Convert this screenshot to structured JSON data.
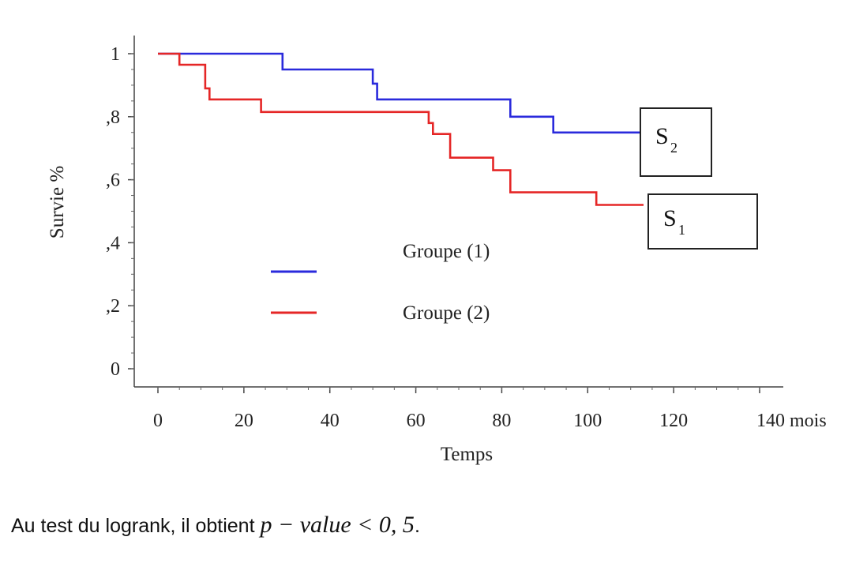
{
  "chart_data": {
    "type": "line",
    "title": "",
    "xlabel": "Temps",
    "ylabel": "Survie %",
    "xlim": [
      0,
      140
    ],
    "ylim": [
      0,
      1
    ],
    "x_ticks": [
      0,
      20,
      40,
      60,
      80,
      100,
      120,
      140
    ],
    "x_tick_labels": [
      "0",
      "20",
      "40",
      "60",
      "80",
      "100",
      "120",
      "140 mois"
    ],
    "y_ticks": [
      0,
      0.2,
      0.4,
      0.6,
      0.8,
      1
    ],
    "y_tick_labels": [
      "0",
      ",2",
      ",4",
      ",6",
      ",8",
      "1"
    ],
    "step": true,
    "series": [
      {
        "name": "Groupe (1)",
        "color": "#2a2adc",
        "x": [
          0,
          29,
          29,
          50,
          50,
          51,
          51,
          82,
          82,
          92,
          92,
          113
        ],
        "y": [
          1,
          1,
          0.95,
          0.95,
          0.905,
          0.905,
          0.855,
          0.855,
          0.8,
          0.8,
          0.75,
          0.75
        ]
      },
      {
        "name": "Groupe (2)",
        "color": "#e52626",
        "x": [
          0,
          5,
          5,
          11,
          11,
          12,
          12,
          24,
          24,
          63,
          63,
          64,
          64,
          68,
          68,
          78,
          78,
          82,
          82,
          102,
          102,
          113
        ],
        "y": [
          1,
          1,
          0.965,
          0.965,
          0.89,
          0.89,
          0.855,
          0.855,
          0.815,
          0.815,
          0.78,
          0.78,
          0.745,
          0.745,
          0.67,
          0.67,
          0.63,
          0.63,
          0.56,
          0.56,
          0.52,
          0.52
        ]
      }
    ],
    "legend": {
      "placement": "center",
      "entries": [
        "Groupe (1)",
        "Groupe (2)"
      ]
    },
    "annotations": [
      {
        "label": "S",
        "subscript": "2",
        "series": "Groupe (1)"
      },
      {
        "label": "S",
        "subscript": "1",
        "series": "Groupe (2)"
      }
    ],
    "grid": false
  },
  "caption": {
    "text_before": "Au test du logrank, il obtient ",
    "math": "p − value < 0, 5",
    "text_after": "."
  }
}
